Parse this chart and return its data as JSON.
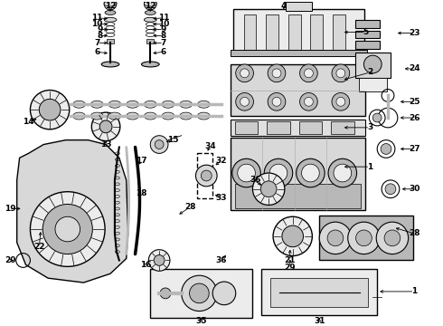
{
  "background_color": "#ffffff",
  "line_color": "#000000",
  "fig_width": 4.9,
  "fig_height": 3.6,
  "dpi": 100,
  "gray_fill": "#d8d8d8",
  "gray_mid": "#b8b8b8",
  "gray_dark": "#909090",
  "gray_light": "#ececec"
}
